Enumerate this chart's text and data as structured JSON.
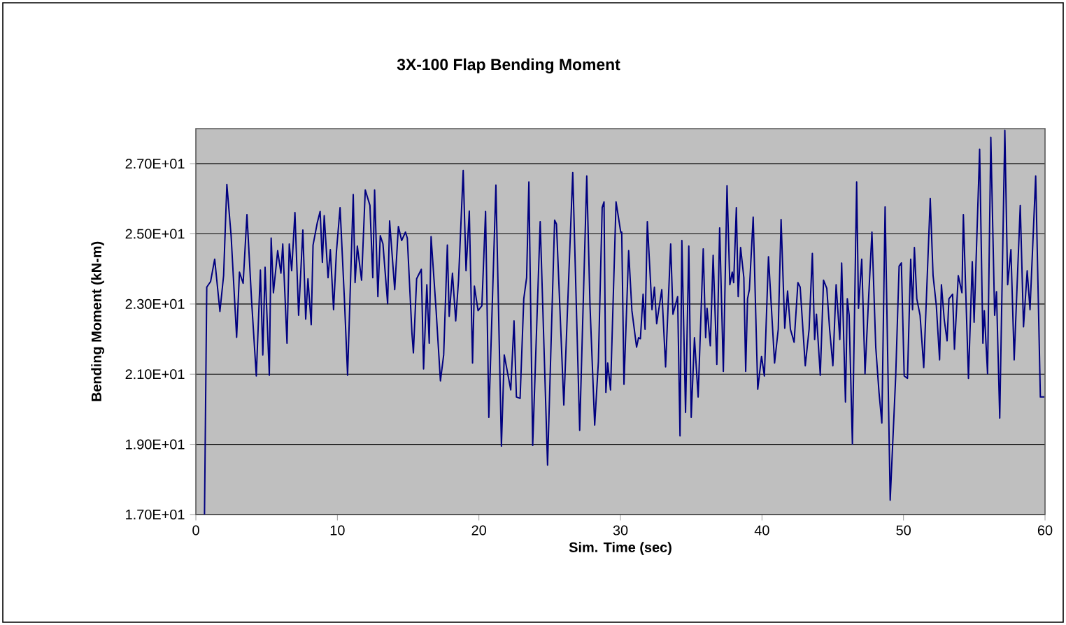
{
  "chart_data": {
    "type": "line",
    "title": "3X-100 Flap Bending Moment",
    "xlabel": "Sim. Time (sec)",
    "ylabel": "Bending Moment (kN-m)",
    "xlim": [
      0,
      60
    ],
    "xticks": [
      0,
      10,
      20,
      30,
      40,
      50,
      60
    ],
    "ylim": [
      17,
      28
    ],
    "yticks": [
      {
        "value": 17,
        "label": "1.70E+01"
      },
      {
        "value": 19,
        "label": "1.90E+01"
      },
      {
        "value": 21,
        "label": "2.10E+01"
      },
      {
        "value": 23,
        "label": "2.30E+01"
      },
      {
        "value": 25,
        "label": "2.50E+01"
      },
      {
        "value": 27,
        "label": "2.70E+01"
      }
    ],
    "grid": "y",
    "marker": "none",
    "line_style": "solid",
    "series": [
      {
        "color": "#000080",
        "x": [
          0.61,
          0.77,
          1.04,
          1.33,
          1.7,
          1.96,
          2.19,
          2.49,
          2.88,
          3.08,
          3.34,
          3.61,
          3.94,
          4.27,
          4.56,
          4.73,
          4.89,
          5.19,
          5.32,
          5.48,
          5.78,
          6.01,
          6.14,
          6.44,
          6.6,
          6.77,
          7.0,
          7.26,
          7.56,
          7.76,
          7.92,
          8.15,
          8.28,
          8.58,
          8.78,
          8.94,
          9.07,
          9.34,
          9.5,
          9.73,
          9.93,
          10.19,
          10.49,
          10.72,
          11.12,
          11.25,
          11.41,
          11.71,
          11.97,
          12.3,
          12.5,
          12.63,
          12.86,
          13.03,
          13.22,
          13.55,
          13.69,
          14.05,
          14.31,
          14.54,
          14.81,
          14.94,
          15.27,
          15.37,
          15.6,
          15.93,
          16.09,
          16.32,
          16.49,
          16.62,
          16.98,
          17.28,
          17.51,
          17.77,
          17.9,
          18.13,
          18.36,
          18.56,
          18.89,
          19.09,
          19.32,
          19.55,
          19.68,
          19.94,
          20.21,
          20.47,
          20.7,
          20.93,
          21.2,
          21.59,
          21.79,
          22.25,
          22.48,
          22.65,
          22.91,
          23.17,
          23.37,
          23.53,
          23.8,
          24.33,
          24.85,
          25.35,
          25.48,
          26.0,
          26.63,
          27.12,
          27.62,
          27.85,
          28.18,
          28.44,
          28.71,
          28.84,
          28.97,
          29.1,
          29.3,
          29.69,
          30.02,
          30.09,
          30.25,
          30.58,
          30.81,
          31.14,
          31.28,
          31.41,
          31.6,
          31.74,
          31.9,
          32.23,
          32.4,
          32.56,
          32.92,
          33.19,
          33.55,
          33.71,
          34.04,
          34.21,
          34.34,
          34.6,
          34.83,
          35.0,
          35.23,
          35.49,
          35.85,
          36.02,
          36.12,
          36.35,
          36.55,
          36.81,
          37.01,
          37.27,
          37.53,
          37.73,
          37.9,
          38.0,
          38.19,
          38.32,
          38.49,
          38.72,
          38.85,
          38.98,
          39.11,
          39.38,
          39.7,
          39.97,
          40.17,
          40.46,
          40.89,
          41.15,
          41.35,
          41.61,
          41.81,
          42.01,
          42.27,
          42.54,
          42.7,
          43.06,
          43.33,
          43.56,
          43.72,
          43.85,
          44.12,
          44.35,
          44.58,
          44.78,
          45.01,
          45.24,
          45.5,
          45.63,
          45.9,
          46.03,
          46.16,
          46.39,
          46.69,
          46.82,
          47.05,
          47.28,
          47.54,
          47.77,
          48.04,
          48.27,
          48.47,
          48.7,
          49.06,
          49.45,
          49.69,
          49.85,
          50.05,
          50.28,
          50.51,
          50.64,
          50.77,
          50.94,
          51.17,
          51.43,
          51.89,
          52.09,
          52.32,
          52.55,
          52.68,
          52.88,
          53.08,
          53.21,
          53.47,
          53.6,
          53.87,
          54.13,
          54.23,
          54.59,
          54.86,
          54.99,
          55.38,
          55.61,
          55.71,
          55.94,
          56.17,
          56.44,
          56.57,
          56.8,
          57.16,
          57.36,
          57.59,
          57.82,
          58.25,
          58.48,
          58.74,
          58.94,
          59.34,
          59.67,
          59.95
        ],
        "values": [
          17.0,
          23.48,
          23.64,
          24.28,
          22.79,
          23.81,
          26.41,
          24.95,
          22.05,
          23.91,
          23.59,
          25.55,
          23.08,
          20.95,
          23.97,
          21.55,
          24.05,
          20.97,
          24.88,
          23.32,
          24.52,
          23.88,
          24.71,
          21.88,
          24.71,
          23.95,
          25.61,
          22.68,
          25.11,
          22.57,
          23.72,
          22.41,
          24.68,
          25.32,
          25.64,
          24.19,
          25.52,
          23.75,
          24.55,
          22.84,
          24.48,
          25.75,
          23.19,
          20.97,
          26.12,
          23.61,
          24.65,
          23.68,
          26.25,
          25.81,
          23.75,
          26.25,
          23.21,
          24.95,
          24.71,
          23.01,
          25.37,
          23.41,
          25.21,
          24.81,
          25.05,
          24.88,
          22.15,
          21.61,
          23.72,
          23.99,
          21.15,
          23.55,
          21.88,
          24.92,
          22.79,
          20.81,
          21.55,
          24.68,
          22.65,
          23.88,
          22.52,
          23.68,
          26.81,
          23.95,
          25.65,
          21.32,
          23.51,
          22.81,
          22.95,
          25.64,
          19.77,
          22.81,
          26.39,
          18.95,
          21.55,
          20.55,
          22.52,
          20.35,
          20.31,
          23.15,
          23.75,
          26.48,
          18.97,
          25.35,
          18.41,
          25.39,
          25.28,
          20.12,
          26.75,
          19.4,
          26.65,
          22.95,
          19.55,
          21.35,
          25.75,
          25.91,
          20.48,
          21.32,
          20.55,
          25.91,
          25.05,
          25.05,
          20.71,
          24.52,
          22.81,
          21.77,
          22.04,
          22.01,
          23.28,
          22.28,
          25.35,
          22.84,
          23.48,
          22.44,
          23.41,
          21.21,
          24.71,
          22.71,
          23.21,
          19.24,
          24.81,
          19.91,
          24.65,
          19.77,
          22.04,
          20.35,
          24.57,
          22.04,
          22.88,
          21.81,
          24.39,
          21.28,
          25.17,
          21.08,
          26.37,
          23.55,
          23.91,
          23.61,
          25.75,
          23.21,
          24.61,
          23.75,
          21.08,
          23.15,
          23.41,
          25.48,
          20.57,
          21.51,
          20.95,
          24.35,
          21.32,
          22.28,
          25.41,
          22.31,
          23.37,
          22.28,
          21.91,
          23.61,
          23.48,
          21.24,
          22.28,
          24.44,
          21.99,
          22.71,
          20.97,
          23.68,
          23.45,
          22.28,
          21.24,
          23.55,
          21.99,
          24.17,
          20.21,
          23.15,
          22.68,
          19.01,
          26.48,
          22.88,
          24.28,
          21.01,
          23.21,
          25.05,
          21.77,
          20.48,
          19.61,
          25.77,
          17.41,
          20.95,
          24.08,
          24.17,
          20.95,
          20.88,
          24.28,
          22.84,
          24.61,
          23.15,
          22.68,
          21.19,
          26.01,
          23.81,
          22.95,
          21.41,
          23.55,
          22.55,
          21.95,
          23.15,
          23.28,
          21.71,
          23.81,
          23.32,
          25.55,
          20.88,
          24.21,
          22.48,
          27.41,
          21.88,
          22.81,
          21.01,
          27.75,
          22.68,
          23.35,
          19.75,
          27.95,
          23.55,
          24.55,
          21.41,
          25.81,
          22.35,
          23.95,
          22.84,
          26.65,
          20.35,
          20.35
        ]
      }
    ]
  }
}
